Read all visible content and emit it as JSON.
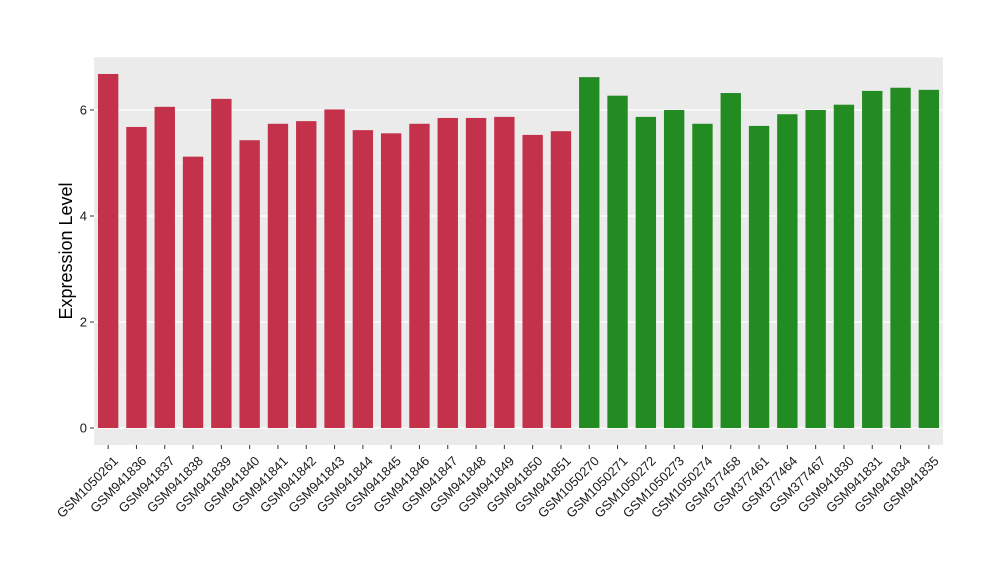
{
  "chart_data": {
    "type": "bar",
    "title": "",
    "xlabel": "",
    "ylabel": "Expression Level",
    "ylim": [
      0,
      7
    ],
    "yticks": [
      0,
      2,
      4,
      6
    ],
    "grid": true,
    "legend": "none",
    "panel_background": "#EBEBEB",
    "grid_color": "#FFFFFF",
    "categories": [
      "GSM1050261",
      "GSM941836",
      "GSM941837",
      "GSM941838",
      "GSM941839",
      "GSM941840",
      "GSM941841",
      "GSM941842",
      "GSM941843",
      "GSM941844",
      "GSM941845",
      "GSM941846",
      "GSM941847",
      "GSM941848",
      "GSM941849",
      "GSM941850",
      "GSM941851",
      "GSM1050270",
      "GSM1050271",
      "GSM1050272",
      "GSM1050273",
      "GSM1050274",
      "GSM377458",
      "GSM377461",
      "GSM377464",
      "GSM377467",
      "GSM941830",
      "GSM941831",
      "GSM941834",
      "GSM941835"
    ],
    "values": [
      6.68,
      5.68,
      6.06,
      5.12,
      6.21,
      5.43,
      5.74,
      5.79,
      6.01,
      5.62,
      5.56,
      5.74,
      5.85,
      5.85,
      5.87,
      5.53,
      5.6,
      6.62,
      6.27,
      5.87,
      6.0,
      5.74,
      6.32,
      5.7,
      5.92,
      6.0,
      6.1,
      6.36,
      6.42,
      6.38
    ],
    "group_colors": [
      "#C4314B",
      "#228B22"
    ],
    "bar_group": [
      0,
      0,
      0,
      0,
      0,
      0,
      0,
      0,
      0,
      0,
      0,
      0,
      0,
      0,
      0,
      0,
      0,
      1,
      1,
      1,
      1,
      1,
      1,
      1,
      1,
      1,
      1,
      1,
      1,
      1
    ]
  }
}
